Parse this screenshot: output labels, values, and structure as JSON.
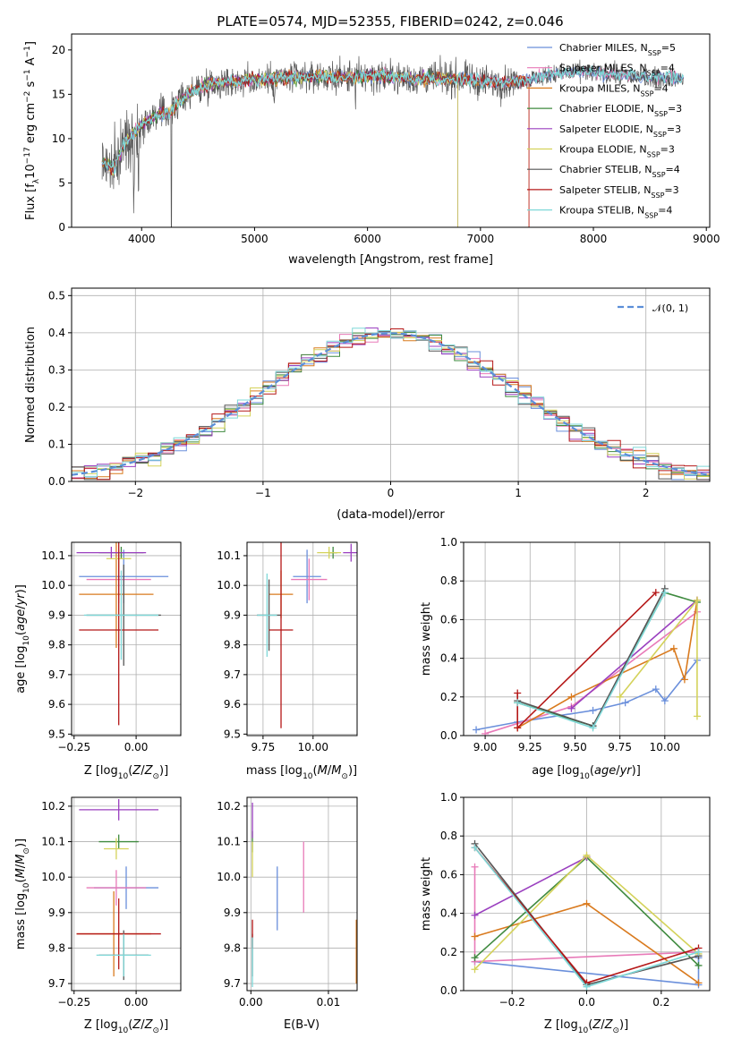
{
  "figure_title": "PLATE=0574, MJD=52355, FIBERID=0242, z=0.046",
  "colors": {
    "Chabrier MILES": "#6a8fdb",
    "Salpeter MILES": "#e87ab8",
    "Kroupa MILES": "#d97a1e",
    "Chabrier ELODIE": "#3f8a3f",
    "Salpeter ELODIE": "#9a3fbf",
    "Kroupa ELODIE": "#d4d25a",
    "Chabrier STELIB": "#555555",
    "Salpeter STELIB": "#b51818",
    "Kroupa STELIB": "#7fd8d8"
  },
  "chart_data": [
    {
      "id": "spectrum",
      "type": "line",
      "title": "PLATE=0574, MJD=52355, FIBERID=0242, z=0.046",
      "xlabel": "wavelength [Angstrom, rest frame]",
      "ylabel": "Flux [f",
      "ylabel_parts": [
        "Flux [f",
        "λ",
        "10",
        "−17",
        " erg cm",
        "−2",
        " s",
        "−1",
        " A",
        "−1",
        "]"
      ],
      "xlim": [
        3380,
        9030
      ],
      "ylim": [
        0,
        21.8
      ],
      "xticks": [
        4000,
        5000,
        6000,
        7000,
        8000,
        9000
      ],
      "yticks": [
        0,
        5,
        10,
        15,
        20
      ],
      "legend_loc": "upper right",
      "legend": [
        {
          "main": "Chabrier MILES, N",
          "sub": "SSP",
          "tail": "=5",
          "color": "#6a8fdb"
        },
        {
          "main": "Salpeter MILES, N",
          "sub": "SSP",
          "tail": "=4",
          "color": "#e87ab8"
        },
        {
          "main": "Kroupa MILES, N",
          "sub": "SSP",
          "tail": "=4",
          "color": "#d97a1e"
        },
        {
          "main": "Chabrier ELODIE, N",
          "sub": "SSP",
          "tail": "=3",
          "color": "#3f8a3f"
        },
        {
          "main": "Salpeter ELODIE, N",
          "sub": "SSP",
          "tail": "=3",
          "color": "#9a3fbf"
        },
        {
          "main": "Kroupa ELODIE, N",
          "sub": "SSP",
          "tail": "=3",
          "color": "#d4d25a"
        },
        {
          "main": "Chabrier STELIB, N",
          "sub": "SSP",
          "tail": "=4",
          "color": "#555555"
        },
        {
          "main": "Salpeter STELIB, N",
          "sub": "SSP",
          "tail": "=3",
          "color": "#b51818"
        },
        {
          "main": "Kroupa STELIB, N",
          "sub": "SSP",
          "tail": "=4",
          "color": "#7fd8d8"
        }
      ],
      "continuum": [
        [
          3650,
          7.5
        ],
        [
          3750,
          6.5
        ],
        [
          3850,
          9.5
        ],
        [
          3950,
          11
        ],
        [
          4100,
          12.5
        ],
        [
          4250,
          13
        ],
        [
          4400,
          15
        ],
        [
          4600,
          16.2
        ],
        [
          4900,
          16.5
        ],
        [
          5200,
          16.8
        ],
        [
          5500,
          17
        ],
        [
          5800,
          16.9
        ],
        [
          6100,
          17.1
        ],
        [
          6400,
          16.8
        ],
        [
          6700,
          16.8
        ],
        [
          7000,
          16.5
        ],
        [
          7200,
          16.3
        ],
        [
          7400,
          16.6
        ],
        [
          7600,
          17.2
        ],
        [
          7900,
          17.6
        ],
        [
          8200,
          17.2
        ],
        [
          8500,
          16.9
        ],
        [
          8800,
          16.8
        ]
      ],
      "model_cutoffs": [
        {
          "series": "Kroupa MILES",
          "end": 7430
        },
        {
          "series": "Salpeter STELIB",
          "end": 7430
        },
        {
          "series": "Kroupa ELODIE",
          "end": 6800
        },
        {
          "series": "Chabrier ELODIE",
          "end": 6800
        },
        {
          "series": "Salpeter ELODIE",
          "end": 6800
        }
      ]
    },
    {
      "id": "residuals",
      "type": "bar",
      "xlabel": "(data-model)/error",
      "ylabel": "Normed distribution",
      "xlim": [
        -2.5,
        2.5
      ],
      "ylim": [
        0,
        0.52
      ],
      "xticks": [
        -2,
        -1,
        0,
        1,
        2
      ],
      "yticks": [
        0.0,
        0.1,
        0.2,
        0.3,
        0.4,
        0.5
      ],
      "grid": true,
      "legend_loc": "upper right",
      "reference_curve": {
        "label": "N(0,1)",
        "color": "#5b8ed8",
        "style": "dashed"
      },
      "bin_width": 0.1
    },
    {
      "id": "age-vs-Z",
      "type": "scatter",
      "xlabel": "Z [log10(Z/Z⊙)]",
      "ylabel": "age  [log10(age/yr)]",
      "xlim": [
        -0.26,
        0.18
      ],
      "ylim": [
        9.495,
        10.145
      ],
      "xticks": [
        -0.25,
        0.0
      ],
      "yticks": [
        9.5,
        9.6,
        9.7,
        9.8,
        9.9,
        10.0,
        10.1
      ],
      "grid": true,
      "points": [
        {
          "series": "Chabrier MILES",
          "x": -0.05,
          "xerr": 0.18,
          "y": 10.03,
          "yerr": 0.09
        },
        {
          "series": "Salpeter MILES",
          "x": -0.07,
          "xerr": 0.13,
          "y": 10.02,
          "yerr": 0.08
        },
        {
          "series": "Kroupa MILES",
          "x": -0.08,
          "xerr": 0.15,
          "y": 9.97,
          "yerr": 0.18
        },
        {
          "series": "Chabrier ELODIE",
          "x": -0.06,
          "xerr": 0.09,
          "y": 10.11,
          "yerr": 0.02
        },
        {
          "series": "Salpeter ELODIE",
          "x": -0.1,
          "xerr": 0.14,
          "y": 10.11,
          "yerr": 0.02
        },
        {
          "series": "Kroupa ELODIE",
          "x": -0.07,
          "xerr": 0.05,
          "y": 10.09,
          "yerr": 0.03
        },
        {
          "series": "Chabrier STELIB",
          "x": -0.05,
          "xerr": 0.15,
          "y": 9.9,
          "yerr": 0.17
        },
        {
          "series": "Salpeter STELIB",
          "x": -0.07,
          "xerr": 0.16,
          "y": 9.85,
          "yerr": 0.32
        },
        {
          "series": "Kroupa STELIB",
          "x": -0.06,
          "xerr": 0.15,
          "y": 9.9,
          "yerr": 0.15
        }
      ]
    },
    {
      "id": "age-vs-mass",
      "type": "scatter",
      "xlabel": "mass [log10(M/M⊙)]",
      "ylabel": "",
      "xlim": [
        9.67,
        10.22
      ],
      "ylim": [
        9.495,
        10.145
      ],
      "xticks": [
        9.75,
        10.0
      ],
      "yticks": [
        9.5,
        9.6,
        9.7,
        9.8,
        9.9,
        10.0,
        10.1
      ],
      "grid": true,
      "points": [
        {
          "series": "Chabrier MILES",
          "x": 9.97,
          "xerr": 0.07,
          "y": 10.03,
          "yerr": 0.09
        },
        {
          "series": "Salpeter MILES",
          "x": 9.98,
          "xerr": 0.09,
          "y": 10.02,
          "yerr": 0.07
        },
        {
          "series": "Kroupa MILES",
          "x": 9.84,
          "xerr": 0.06,
          "y": 9.97,
          "yerr": 0.08
        },
        {
          "series": "Chabrier ELODIE",
          "x": 10.1,
          "xerr": 0.02,
          "y": 10.11,
          "yerr": 0.02
        },
        {
          "series": "Salpeter ELODIE",
          "x": 10.19,
          "xerr": 0.04,
          "y": 10.11,
          "yerr": 0.03
        },
        {
          "series": "Kroupa ELODIE",
          "x": 10.08,
          "xerr": 0.06,
          "y": 10.11,
          "yerr": 0.02
        },
        {
          "series": "Chabrier STELIB",
          "x": 9.78,
          "xerr": 0.06,
          "y": 9.9,
          "yerr": 0.12
        },
        {
          "series": "Salpeter STELIB",
          "x": 9.84,
          "xerr": 0.06,
          "y": 9.85,
          "yerr": 0.33
        },
        {
          "series": "Kroupa STELIB",
          "x": 9.77,
          "xerr": 0.05,
          "y": 9.9,
          "yerr": 0.14
        }
      ]
    },
    {
      "id": "weight-vs-age",
      "type": "line",
      "xlabel": "age  [log10(age/yr)]",
      "ylabel": "mass weight",
      "xlim": [
        8.88,
        10.25
      ],
      "ylim": [
        0,
        1
      ],
      "xticks": [
        9.0,
        9.25,
        9.5,
        9.75,
        10.0
      ],
      "yticks": [
        0.0,
        0.2,
        0.4,
        0.6,
        0.8,
        1.0
      ],
      "grid": true,
      "series": [
        {
          "name": "Chabrier MILES",
          "x": [
            8.95,
            9.18,
            9.6,
            9.78,
            9.95,
            10.0,
            10.18
          ],
          "y": [
            0.03,
            0.07,
            0.13,
            0.17,
            0.24,
            0.18,
            0.39
          ]
        },
        {
          "name": "Salpeter MILES",
          "x": [
            9.0,
            9.48,
            10.18
          ],
          "y": [
            0.01,
            0.15,
            0.64
          ]
        },
        {
          "name": "Kroupa MILES",
          "x": [
            9.18,
            9.48,
            10.05,
            10.11,
            10.18
          ],
          "y": [
            0.04,
            0.2,
            0.45,
            0.29,
            0.7
          ]
        },
        {
          "name": "Chabrier ELODIE",
          "x": [
            9.18,
            9.6,
            10.0,
            10.18
          ],
          "y": [
            0.17,
            0.05,
            0.74,
            0.69
          ]
        },
        {
          "name": "Salpeter ELODIE",
          "x": [
            9.48,
            10.18
          ],
          "y": [
            0.14,
            0.7
          ]
        },
        {
          "name": "Kroupa ELODIE",
          "x": [
            9.75,
            10.18,
            10.18
          ],
          "y": [
            0.2,
            0.7,
            0.1
          ]
        },
        {
          "name": "Chabrier STELIB",
          "x": [
            9.18,
            9.6,
            10.0
          ],
          "y": [
            0.18,
            0.05,
            0.76
          ]
        },
        {
          "name": "Salpeter STELIB",
          "x": [
            9.18,
            9.18,
            9.95
          ],
          "y": [
            0.22,
            0.04,
            0.74
          ]
        },
        {
          "name": "Kroupa STELIB",
          "x": [
            9.18,
            9.6,
            10.0
          ],
          "y": [
            0.17,
            0.04,
            0.74
          ]
        }
      ]
    },
    {
      "id": "mass-vs-Z",
      "type": "scatter",
      "xlabel": "Z [log10(Z/Z⊙)]",
      "ylabel": "mass [log10(M/M⊙)]",
      "xlim": [
        -0.26,
        0.18
      ],
      "ylim": [
        9.68,
        10.225
      ],
      "xticks": [
        -0.25,
        0.0
      ],
      "yticks": [
        9.7,
        9.8,
        9.9,
        10.0,
        10.1,
        10.2
      ],
      "grid": true,
      "points": [
        {
          "series": "Chabrier MILES",
          "x": -0.04,
          "xerr": 0.13,
          "y": 9.97,
          "yerr": 0.06
        },
        {
          "series": "Salpeter MILES",
          "x": -0.08,
          "xerr": 0.12,
          "y": 9.97,
          "yerr": 0.05
        },
        {
          "series": "Kroupa MILES",
          "x": -0.09,
          "xerr": 0.15,
          "y": 9.84,
          "yerr": 0.12
        },
        {
          "series": "Chabrier ELODIE",
          "x": -0.07,
          "xerr": 0.08,
          "y": 10.1,
          "yerr": 0.02
        },
        {
          "series": "Salpeter ELODIE",
          "x": -0.07,
          "xerr": 0.16,
          "y": 10.19,
          "yerr": 0.03
        },
        {
          "series": "Kroupa ELODIE",
          "x": -0.08,
          "xerr": 0.05,
          "y": 10.08,
          "yerr": 0.03
        },
        {
          "series": "Chabrier STELIB",
          "x": -0.05,
          "xerr": 0.1,
          "y": 9.78,
          "yerr": 0.07
        },
        {
          "series": "Salpeter STELIB",
          "x": -0.07,
          "xerr": 0.17,
          "y": 9.84,
          "yerr": 0.1
        },
        {
          "series": "Kroupa STELIB",
          "x": -0.05,
          "xerr": 0.11,
          "y": 9.78,
          "yerr": 0.06
        }
      ]
    },
    {
      "id": "mass-vs-EBV",
      "type": "scatter",
      "xlabel": "E(B-V)",
      "ylabel": "",
      "xlim": [
        -0.0005,
        0.0137
      ],
      "ylim": [
        9.68,
        10.225
      ],
      "xticks": [
        0.0,
        0.01
      ],
      "yticks": [
        9.7,
        9.8,
        9.9,
        10.0,
        10.1,
        10.2
      ],
      "grid": true,
      "points": [
        {
          "series": "Chabrier MILES",
          "x": 0.0034,
          "y": 9.94,
          "yerr": 0.09
        },
        {
          "series": "Salpeter MILES",
          "x": 0.0068,
          "y": 10.0,
          "yerr": 0.1
        },
        {
          "series": "Kroupa MILES",
          "x": 0.0136,
          "y": 9.79,
          "yerr": 0.09
        },
        {
          "series": "Chabrier ELODIE",
          "x": 0.0002,
          "y": 10.1,
          "yerr": 0.03
        },
        {
          "series": "Salpeter ELODIE",
          "x": 0.0002,
          "y": 10.16,
          "yerr": 0.05
        },
        {
          "series": "Kroupa ELODIE",
          "x": 0.0002,
          "y": 10.05,
          "yerr": 0.05
        },
        {
          "series": "Chabrier STELIB",
          "x": 0.0002,
          "y": 9.78,
          "yerr": 0.06
        },
        {
          "series": "Salpeter STELIB",
          "x": 0.0002,
          "y": 9.84,
          "yerr": 0.04
        },
        {
          "series": "Kroupa STELIB",
          "x": 0.0002,
          "y": 9.76,
          "yerr": 0.07
        }
      ]
    },
    {
      "id": "weight-vs-Z",
      "type": "line",
      "xlabel": "Z [log10(Z/Z⊙)]",
      "ylabel": "mass weight",
      "xlim": [
        -0.33,
        0.33
      ],
      "ylim": [
        0,
        1
      ],
      "xticks": [
        -0.2,
        0.0,
        0.2
      ],
      "yticks": [
        0.0,
        0.2,
        0.4,
        0.6,
        0.8,
        1.0
      ],
      "grid": true,
      "series": [
        {
          "name": "Chabrier MILES",
          "x": [
            -0.3,
            0.3,
            0.3
          ],
          "y": [
            0.15,
            0.03,
            0.17
          ]
        },
        {
          "name": "Salpeter MILES",
          "x": [
            -0.3,
            -0.3,
            0.3
          ],
          "y": [
            0.64,
            0.15,
            0.2
          ]
        },
        {
          "name": "Kroupa MILES",
          "x": [
            -0.3,
            0.0,
            0.3
          ],
          "y": [
            0.28,
            0.45,
            0.04
          ]
        },
        {
          "name": "Chabrier ELODIE",
          "x": [
            -0.3,
            0.0,
            0.3
          ],
          "y": [
            0.17,
            0.69,
            0.13
          ]
        },
        {
          "name": "Salpeter ELODIE",
          "x": [
            -0.3,
            0.0
          ],
          "y": [
            0.39,
            0.69
          ]
        },
        {
          "name": "Kroupa ELODIE",
          "x": [
            -0.3,
            0.0,
            0.3
          ],
          "y": [
            0.11,
            0.7,
            0.19
          ]
        },
        {
          "name": "Chabrier STELIB",
          "x": [
            -0.3,
            0.0,
            0.3
          ],
          "y": [
            0.76,
            0.03,
            0.18
          ]
        },
        {
          "name": "Salpeter STELIB",
          "x": [
            -0.3,
            0.0,
            0.3
          ],
          "y": [
            0.74,
            0.04,
            0.22
          ]
        },
        {
          "name": "Kroupa STELIB",
          "x": [
            -0.3,
            0.0,
            0.3
          ],
          "y": [
            0.74,
            0.02,
            0.2
          ]
        }
      ]
    }
  ]
}
